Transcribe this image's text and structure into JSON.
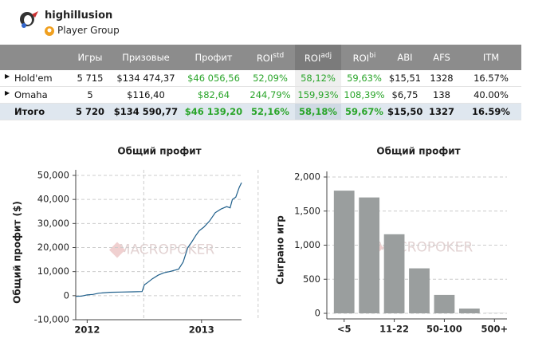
{
  "header": {
    "username": "highillusion",
    "group": "Player Group"
  },
  "table": {
    "columns": [
      {
        "text": "Игры"
      },
      {
        "text": "Призовые"
      },
      {
        "text": "Профит",
        "color": "#2aa52a"
      },
      {
        "text": "ROI",
        "sup": "std",
        "color": "#2aa52a"
      },
      {
        "text": "ROI",
        "sup": "adj",
        "color": "#2aa52a"
      },
      {
        "text": "ROI",
        "sup": "bi",
        "color": "#2aa52a"
      },
      {
        "text": "ABI"
      },
      {
        "text": "AFS"
      },
      {
        "text": "ITM"
      }
    ],
    "rows": [
      {
        "name": "Hold'em",
        "cells": [
          "5 715",
          "$134 474,37",
          "$46 056,56",
          "52,09%",
          "58,12%",
          "59,63%",
          "$15,51",
          "1328",
          "16.57%"
        ]
      },
      {
        "name": "Omaha",
        "cells": [
          "5",
          "$116,40",
          "$82,64",
          "244,79%",
          "159,93%",
          "108,39%",
          "$6,75",
          "138",
          "40.00%"
        ]
      },
      {
        "name": "Итого",
        "cells": [
          "5 720",
          "$134 590,77",
          "$46 139,20",
          "52,16%",
          "58,18%",
          "59,67%",
          "$15,50",
          "1327",
          "16.59%"
        ]
      }
    ]
  },
  "chart_data": [
    {
      "type": "line",
      "title": "Общий профит",
      "ylabel": "Общий профит ($)",
      "watermark": "MACROPOKER",
      "color": "#1f5f8b",
      "grid": true,
      "x": [
        2011.9,
        2011.95,
        2012.0,
        2012.05,
        2012.1,
        2012.2,
        2012.3,
        2012.4,
        2012.48,
        2012.5,
        2012.53,
        2012.57,
        2012.62,
        2012.67,
        2012.72,
        2012.8,
        2012.84,
        2012.88,
        2012.91,
        2012.95,
        2012.98,
        2013.02,
        2013.07,
        2013.12,
        2013.17,
        2013.22,
        2013.25,
        2013.27,
        2013.3,
        2013.33,
        2013.35
      ],
      "values": [
        -300,
        -200,
        300,
        500,
        1000,
        1400,
        1500,
        1600,
        1700,
        4500,
        5500,
        7000,
        8500,
        9500,
        10000,
        11000,
        14000,
        20000,
        22000,
        25000,
        27000,
        28500,
        31000,
        34500,
        36000,
        37000,
        36500,
        40000,
        41000,
        45000,
        47000
      ],
      "xlim": [
        2011.9,
        2013.35
      ],
      "xticks": [
        2012,
        2013
      ],
      "ylim": [
        -10000,
        50000
      ],
      "yticks": [
        {
          "value": -10000,
          "label": "-10,000"
        },
        0,
        {
          "value": 10000,
          "label": "10,000"
        },
        {
          "value": 20000,
          "label": "20,000"
        },
        {
          "value": 30000,
          "label": "30,000"
        },
        {
          "value": 40000,
          "label": "40,000"
        },
        {
          "value": 50000,
          "label": "50,000"
        }
      ]
    },
    {
      "type": "bar",
      "title": "Общий профит",
      "ylabel": "Сыграно игр",
      "watermark": "MACROPOKER",
      "color": "#9a9e9e",
      "grid": true,
      "categories": [
        "<5",
        null,
        "11-22",
        null,
        "50-100",
        null,
        "500+"
      ],
      "values": [
        1800,
        1700,
        1160,
        660,
        270,
        70,
        3
      ],
      "ylim": [
        0,
        2000
      ],
      "yticks": [
        0,
        500,
        {
          "value": 1000,
          "label": "1,000"
        },
        {
          "value": 1500,
          "label": "1,500"
        },
        {
          "value": 2000,
          "label": "2,000"
        }
      ]
    }
  ]
}
